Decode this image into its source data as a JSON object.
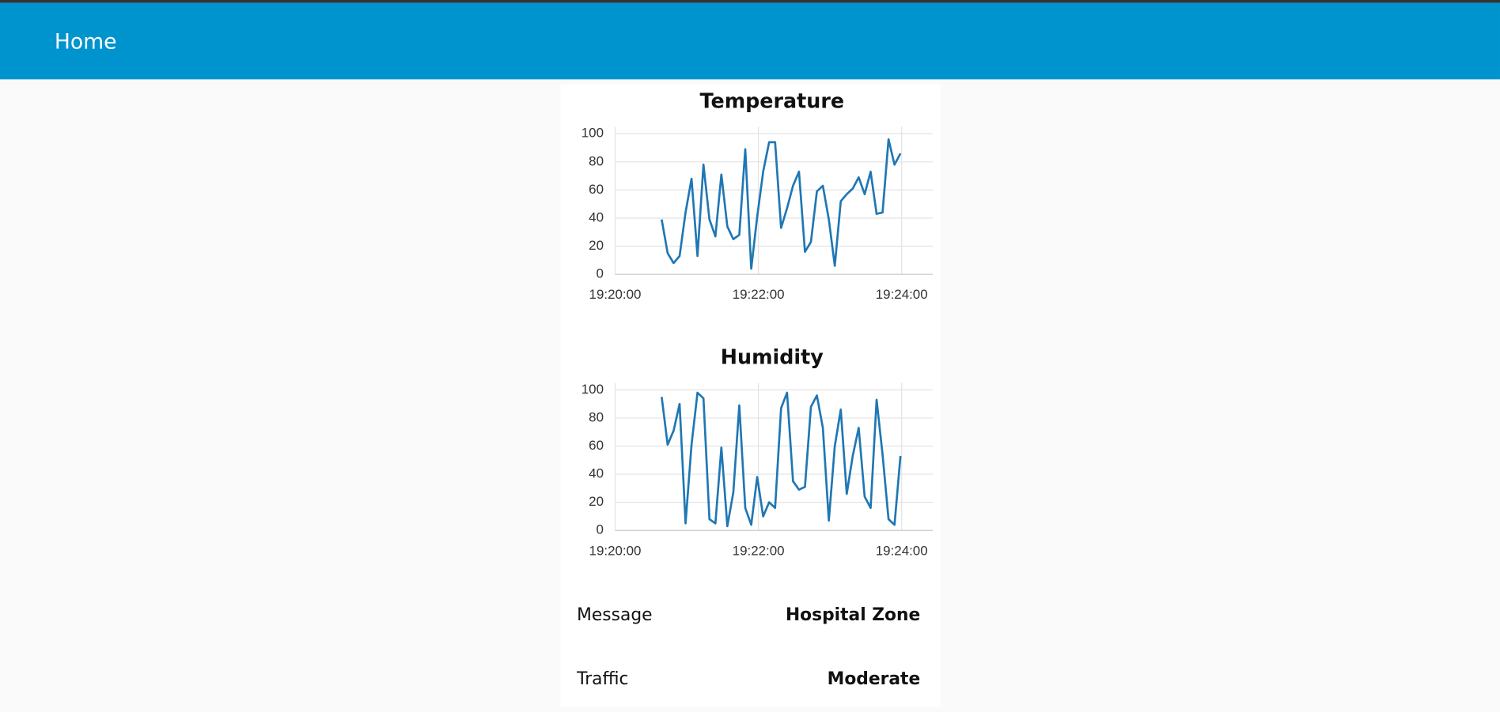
{
  "header": {
    "title": "Home"
  },
  "chart_data": [
    {
      "type": "line",
      "title": "Temperature",
      "x": [
        "19:20:39",
        "19:20:44",
        "19:20:49",
        "19:20:54",
        "19:20:59",
        "19:21:04",
        "19:21:09",
        "19:21:14",
        "19:21:19",
        "19:21:24",
        "19:21:29",
        "19:21:34",
        "19:21:39",
        "19:21:44",
        "19:21:49",
        "19:21:54",
        "19:21:59",
        "19:22:04",
        "19:22:09",
        "19:22:14",
        "19:22:19",
        "19:22:24",
        "19:22:29",
        "19:22:34",
        "19:22:39",
        "19:22:44",
        "19:22:49",
        "19:22:54",
        "19:22:59",
        "19:23:04",
        "19:23:09",
        "19:23:14",
        "19:23:19",
        "19:23:24",
        "19:23:29",
        "19:23:34",
        "19:23:39",
        "19:23:44",
        "19:23:49",
        "19:23:54",
        "19:23:59"
      ],
      "series": [
        {
          "color": "#1f77b4",
          "values": [
            39,
            15,
            8,
            13,
            44,
            68,
            13,
            78,
            39,
            27,
            71,
            34,
            25,
            28,
            89,
            4,
            41,
            73,
            94,
            94,
            33,
            47,
            63,
            73,
            16,
            23,
            59,
            63,
            39,
            6,
            52,
            57,
            61,
            69,
            57,
            73,
            43,
            44,
            96,
            78,
            86
          ]
        }
      ],
      "xlim": [
        "19:20:00",
        "19:24:26"
      ],
      "xticks": [
        "19:20:00",
        "19:22:00",
        "19:24:00"
      ],
      "ylim": [
        0,
        105
      ],
      "yticks": [
        0,
        20,
        40,
        60,
        80,
        100
      ],
      "grid": true
    },
    {
      "type": "line",
      "title": "Humidity",
      "x": [
        "19:20:39",
        "19:20:44",
        "19:20:49",
        "19:20:54",
        "19:20:59",
        "19:21:04",
        "19:21:09",
        "19:21:14",
        "19:21:19",
        "19:21:24",
        "19:21:29",
        "19:21:34",
        "19:21:39",
        "19:21:44",
        "19:21:49",
        "19:21:54",
        "19:21:59",
        "19:22:04",
        "19:22:09",
        "19:22:14",
        "19:22:19",
        "19:22:24",
        "19:22:29",
        "19:22:34",
        "19:22:39",
        "19:22:44",
        "19:22:49",
        "19:22:54",
        "19:22:59",
        "19:23:04",
        "19:23:09",
        "19:23:14",
        "19:23:19",
        "19:23:24",
        "19:23:29",
        "19:23:34",
        "19:23:39",
        "19:23:44",
        "19:23:49",
        "19:23:54",
        "19:23:59"
      ],
      "series": [
        {
          "color": "#1f77b4",
          "values": [
            95,
            61,
            71,
            90,
            5,
            61,
            98,
            94,
            8,
            5,
            59,
            3,
            27,
            89,
            16,
            4,
            38,
            10,
            20,
            16,
            87,
            98,
            35,
            29,
            31,
            88,
            96,
            73,
            7,
            60,
            86,
            26,
            53,
            73,
            24,
            16,
            93,
            54,
            8,
            4,
            53
          ]
        }
      ],
      "xlim": [
        "19:20:00",
        "19:24:26"
      ],
      "xticks": [
        "19:20:00",
        "19:22:00",
        "19:24:00"
      ],
      "ylim": [
        0,
        105
      ],
      "yticks": [
        0,
        20,
        40,
        60,
        80,
        100
      ],
      "grid": true
    }
  ],
  "widgets": [
    {
      "label": "Message",
      "value": "Hospital Zone"
    },
    {
      "label": "Traffic",
      "value": "Moderate"
    }
  ]
}
